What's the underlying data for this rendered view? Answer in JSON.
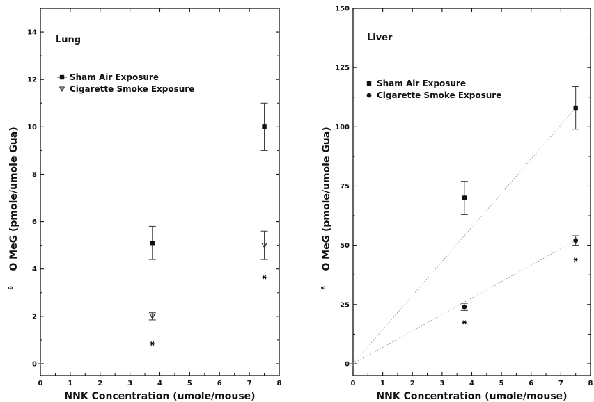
{
  "chart_data": [
    {
      "type": "scatter",
      "title": "Lung",
      "xlabel": "NNK Concentration (umole/mouse)",
      "ylabel": "O MeG (pmole/umole Gua)",
      "ylabel_superscript": "6",
      "xlim": [
        0,
        8
      ],
      "ylim": [
        -0.5,
        15
      ],
      "xticks": [
        0,
        1,
        2,
        3,
        4,
        5,
        6,
        7,
        8
      ],
      "yticks": [
        0,
        2,
        4,
        6,
        8,
        10,
        12,
        14
      ],
      "legend_position": "upper-left",
      "series": [
        {
          "name": "Sham Air Exposure",
          "marker": "square",
          "points": [
            {
              "x": 0,
              "y": 0
            },
            {
              "x": 3.75,
              "y": 5.1,
              "err": 0.7
            },
            {
              "x": 7.5,
              "y": 10.0,
              "err": 1.0
            }
          ]
        },
        {
          "name": "Cigarette Smoke Exposure",
          "marker": "star",
          "points": [
            {
              "x": 0,
              "y": 0
            },
            {
              "x": 3.75,
              "y": 2.0,
              "err": 0.15
            },
            {
              "x": 7.5,
              "y": 5.0,
              "err": 0.6
            }
          ]
        },
        {
          "name": "",
          "marker": "asterisk",
          "points": [
            {
              "x": 3.75,
              "y": 0.85
            },
            {
              "x": 7.5,
              "y": 3.65
            }
          ]
        }
      ]
    },
    {
      "type": "scatter",
      "title": "Liver",
      "xlabel": "NNK Concentration (umole/mouse)",
      "ylabel": "O MeG (pmole/umole Gua)",
      "ylabel_superscript": "6",
      "xlim": [
        0,
        8
      ],
      "ylim": [
        -5,
        150
      ],
      "xticks": [
        0,
        1,
        2,
        3,
        4,
        5,
        6,
        7,
        8
      ],
      "yticks": [
        0,
        25,
        50,
        75,
        100,
        125,
        150
      ],
      "legend_position": "upper-left",
      "series": [
        {
          "name": "Sham Air Exposure",
          "marker": "square",
          "points": [
            {
              "x": 0,
              "y": 0
            },
            {
              "x": 3.75,
              "y": 70,
              "err": 7
            },
            {
              "x": 7.5,
              "y": 108,
              "err": 9
            }
          ]
        },
        {
          "name": "Cigarette Smoke Exposure",
          "marker": "circle",
          "points": [
            {
              "x": 0,
              "y": 0
            },
            {
              "x": 3.75,
              "y": 24,
              "err": 1.5
            },
            {
              "x": 7.5,
              "y": 52,
              "err": 2
            }
          ]
        },
        {
          "name": "",
          "marker": "asterisk",
          "points": [
            {
              "x": 3.75,
              "y": 17.5
            },
            {
              "x": 7.5,
              "y": 44
            }
          ]
        }
      ]
    }
  ]
}
